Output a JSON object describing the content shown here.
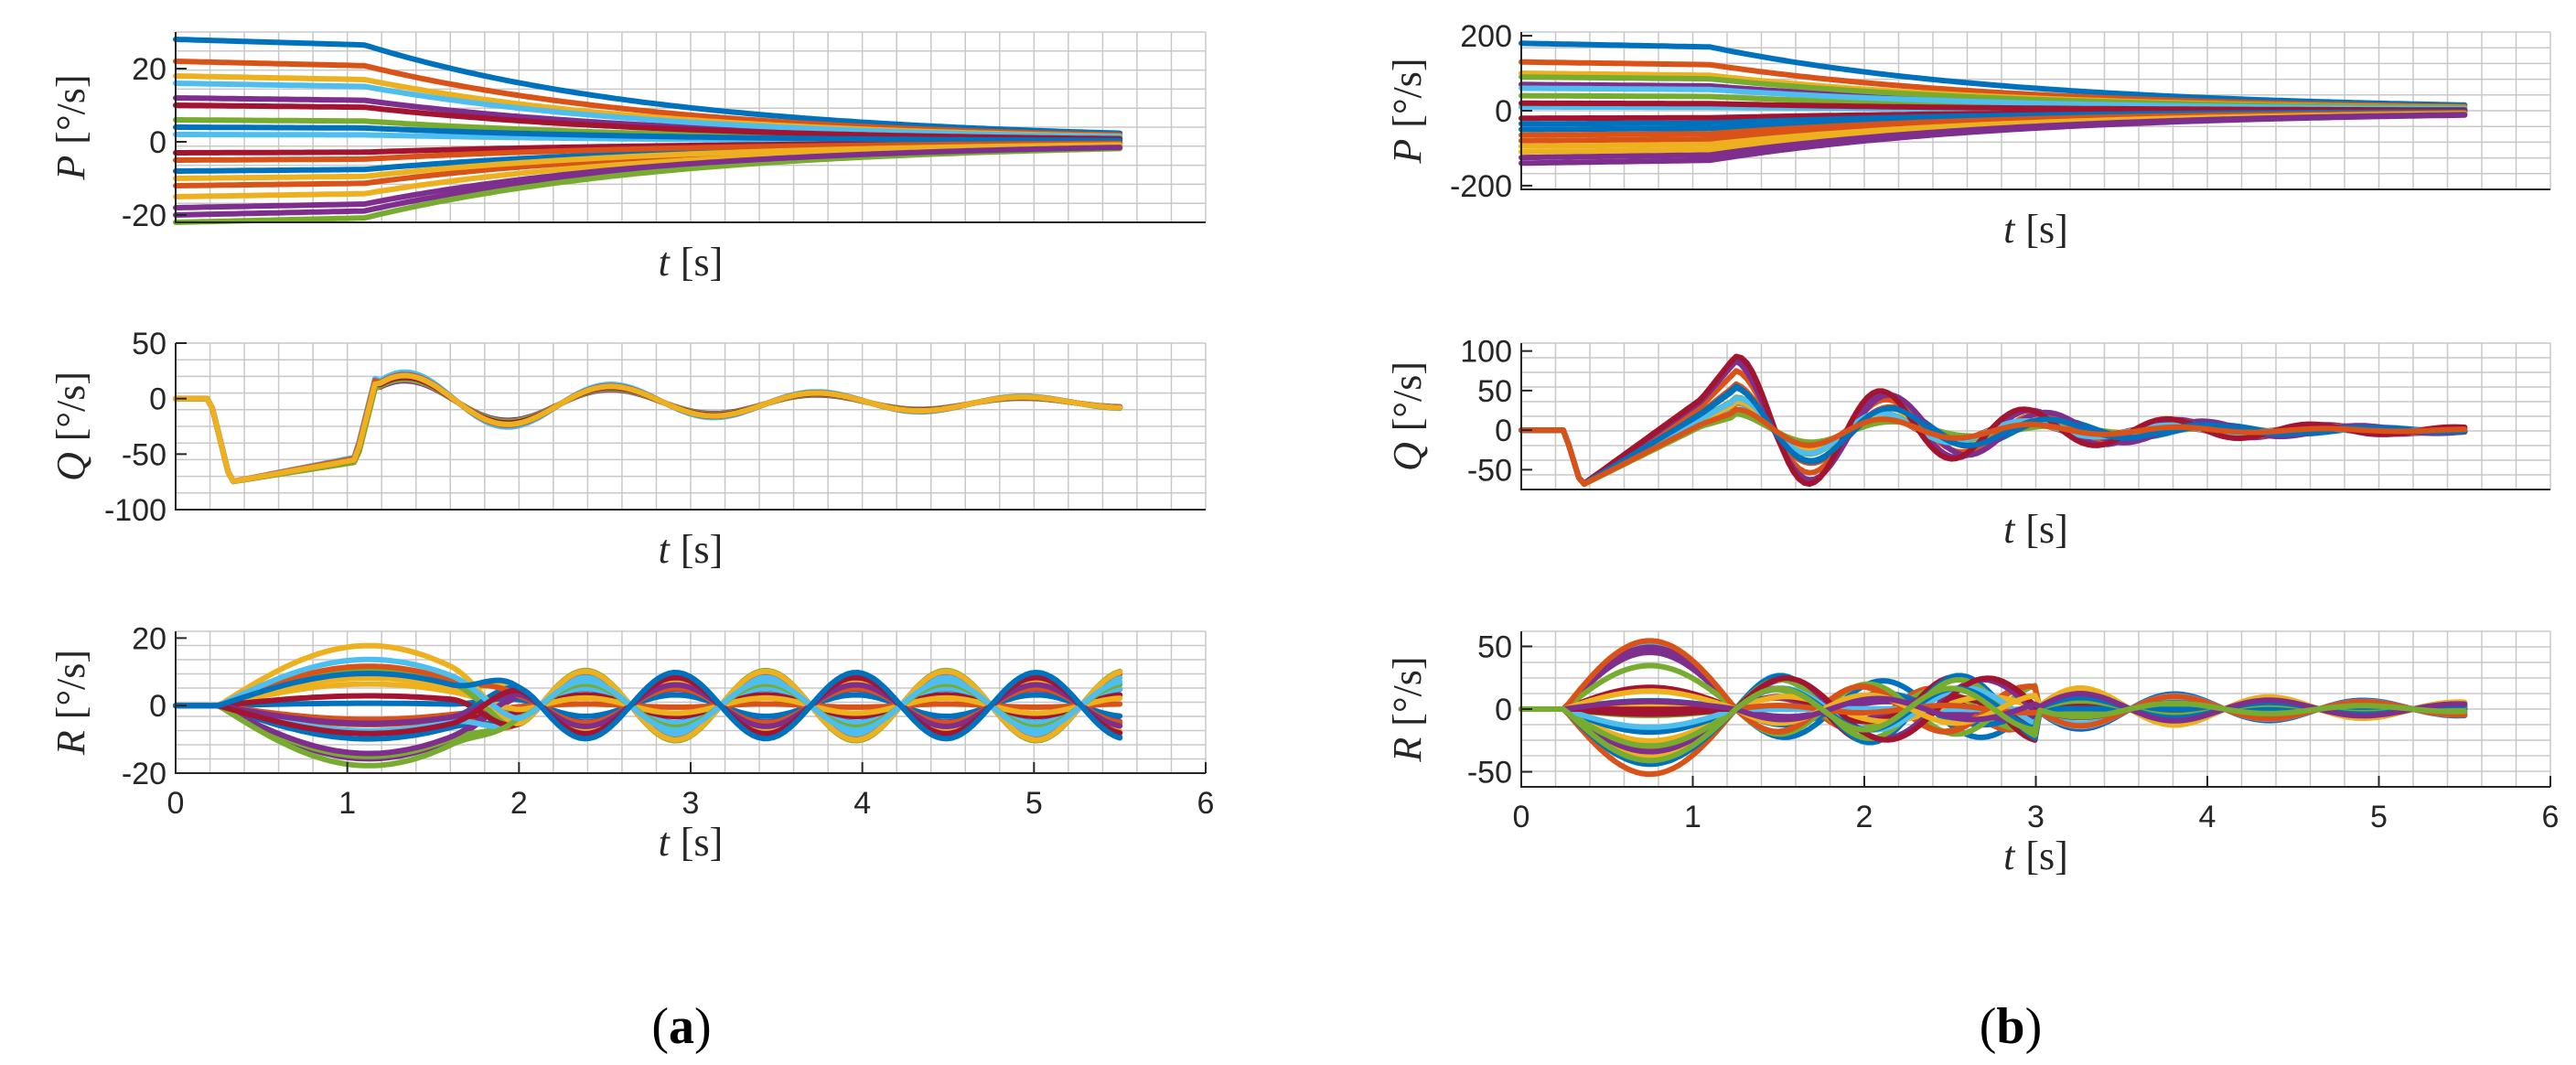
{
  "colors": [
    "#0072BD",
    "#D95319",
    "#EDB120",
    "#7E2F8E",
    "#77AC30",
    "#4DBEEE",
    "#A2142F"
  ],
  "chart_data": [
    {
      "panel": "a",
      "type": "line",
      "title": "",
      "xlabel_var": "t",
      "xlabel_unit": "[s]",
      "ylabel_var": "P",
      "ylabel_unit": "[°/s]",
      "xlim": [
        0,
        6
      ],
      "ylim": [
        -22,
        30
      ],
      "yticks": [
        -20,
        0,
        20
      ],
      "yticklabels": [
        "-20",
        "0",
        "20"
      ],
      "xticks": [],
      "xticklabels": [],
      "kind": "P",
      "amp": [
        28,
        22,
        18,
        12,
        6,
        2,
        -3,
        -8,
        -12,
        -15,
        -20,
        -22,
        16,
        10,
        4,
        -5,
        -10,
        -18
      ]
    },
    {
      "panel": "a",
      "type": "line",
      "title": "",
      "xlabel_var": "t",
      "xlabel_unit": "[s]",
      "ylabel_var": "Q",
      "ylabel_unit": "[°/s]",
      "xlim": [
        0,
        6
      ],
      "ylim": [
        -100,
        50
      ],
      "yticks": [
        -100,
        -50,
        0,
        50
      ],
      "yticklabels": [
        "-100",
        "-50",
        "0",
        "50"
      ],
      "xticks": [],
      "xticklabels": [],
      "kind": "Qa"
    },
    {
      "panel": "a",
      "type": "line",
      "title": "",
      "xlabel_var": "t",
      "xlabel_unit": "[s]",
      "ylabel_var": "R",
      "ylabel_unit": "[°/s]",
      "xlim": [
        0,
        6
      ],
      "ylim": [
        -20,
        22
      ],
      "yticks": [
        -20,
        0,
        20
      ],
      "yticklabels": [
        "-20",
        "0",
        "20"
      ],
      "xticks": [
        0,
        1,
        2,
        3,
        4,
        5,
        6
      ],
      "xticklabels": [
        "0",
        "1",
        "2",
        "3",
        "4",
        "5",
        "6"
      ],
      "kind": "Ra"
    },
    {
      "panel": "b",
      "type": "line",
      "title": "",
      "xlabel_var": "t",
      "xlabel_unit": "[s]",
      "ylabel_var": "P",
      "ylabel_unit": "[°/s]",
      "xlim": [
        0,
        6
      ],
      "ylim": [
        -210,
        210
      ],
      "yticks": [
        -200,
        0,
        200
      ],
      "yticklabels": [
        "-200",
        "0",
        "200"
      ],
      "xticks": [],
      "xticklabels": [],
      "kind": "P",
      "amp": [
        180,
        130,
        100,
        70,
        40,
        10,
        -20,
        -50,
        -80,
        -110,
        -140,
        90,
        60,
        20,
        -35,
        -65,
        -95,
        -125
      ]
    },
    {
      "panel": "b",
      "type": "line",
      "title": "",
      "xlabel_var": "t",
      "xlabel_unit": "[s]",
      "ylabel_var": "Q",
      "ylabel_unit": "[°/s]",
      "xlim": [
        0,
        6
      ],
      "ylim": [
        -75,
        110
      ],
      "yticks": [
        -50,
        0,
        50,
        100
      ],
      "yticklabels": [
        "-50",
        "0",
        "50",
        "100"
      ],
      "xticks": [],
      "xticklabels": [],
      "kind": "Qb"
    },
    {
      "panel": "b",
      "type": "line",
      "title": "",
      "xlabel_var": "t",
      "xlabel_unit": "[s]",
      "ylabel_var": "R",
      "ylabel_unit": "[°/s]",
      "xlim": [
        0,
        6
      ],
      "ylim": [
        -62,
        62
      ],
      "yticks": [
        -50,
        0,
        50
      ],
      "yticklabels": [
        "-50",
        "0",
        "50"
      ],
      "xticks": [
        0,
        1,
        2,
        3,
        4,
        5,
        6
      ],
      "xticklabels": [
        "0",
        "1",
        "2",
        "3",
        "4",
        "5",
        "6"
      ],
      "kind": "Rb"
    }
  ],
  "captions": {
    "a_open": "(",
    "a_letter": "a",
    "a_close": ")",
    "b_open": "(",
    "b_letter": "b",
    "b_close": ")"
  }
}
